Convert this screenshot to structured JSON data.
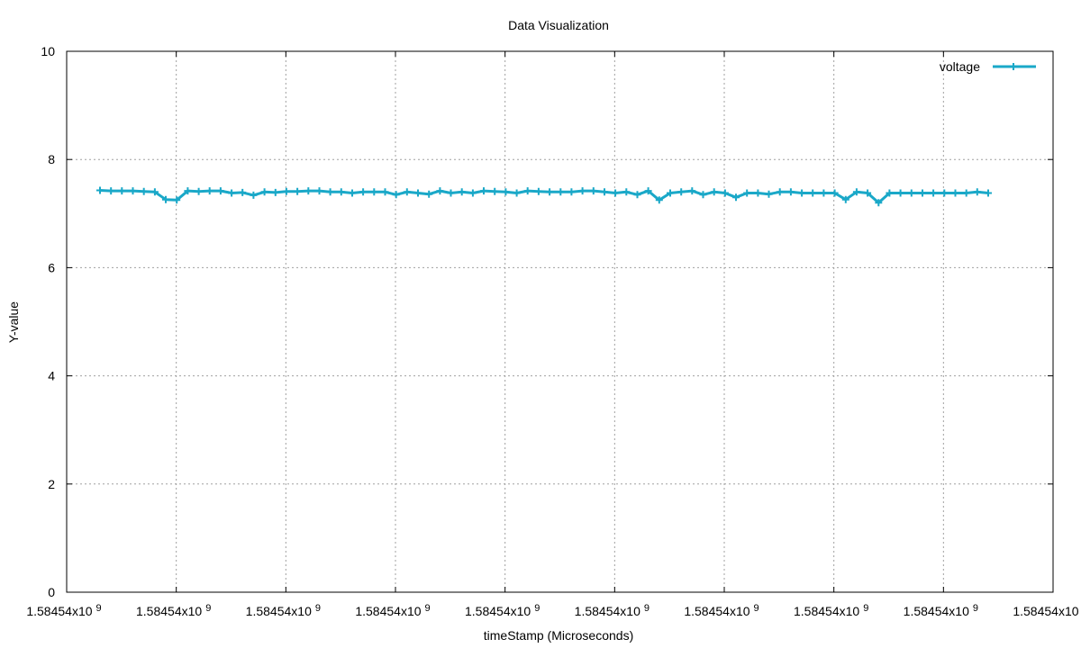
{
  "chart_data": {
    "type": "line",
    "title": "Data Visualization",
    "xlabel": "timeStamp (Microseconds)",
    "ylabel": "Y-value",
    "ylim": [
      0,
      10
    ],
    "yticks": [
      0,
      2,
      4,
      6,
      8,
      10
    ],
    "xtick_labels": [
      "1.58454x10",
      "1.58454x10",
      "1.58454x10",
      "1.58454x10",
      "1.58454x10",
      "1.58454x10",
      "1.58454x10",
      "1.58454x10",
      "1.58454x10",
      "1.58454x10"
    ],
    "xtick_exponent": "9",
    "grid": true,
    "legend_position": "top-right",
    "colors": {
      "series": "#1aa8c8"
    },
    "series": [
      {
        "name": "voltage",
        "values": [
          7.43,
          7.42,
          7.42,
          7.42,
          7.41,
          7.4,
          7.26,
          7.25,
          7.42,
          7.41,
          7.42,
          7.42,
          7.38,
          7.39,
          7.34,
          7.4,
          7.39,
          7.41,
          7.41,
          7.42,
          7.42,
          7.4,
          7.4,
          7.38,
          7.4,
          7.4,
          7.4,
          7.35,
          7.4,
          7.38,
          7.36,
          7.42,
          7.38,
          7.4,
          7.38,
          7.42,
          7.41,
          7.4,
          7.38,
          7.42,
          7.41,
          7.4,
          7.4,
          7.4,
          7.42,
          7.42,
          7.4,
          7.38,
          7.4,
          7.35,
          7.42,
          7.25,
          7.38,
          7.4,
          7.42,
          7.35,
          7.4,
          7.38,
          7.3,
          7.38,
          7.38,
          7.36,
          7.4,
          7.4,
          7.38,
          7.38,
          7.38,
          7.38,
          7.26,
          7.4,
          7.38,
          7.2,
          7.38,
          7.38,
          7.38,
          7.38,
          7.38,
          7.38,
          7.38,
          7.38,
          7.4,
          7.38
        ]
      }
    ]
  }
}
